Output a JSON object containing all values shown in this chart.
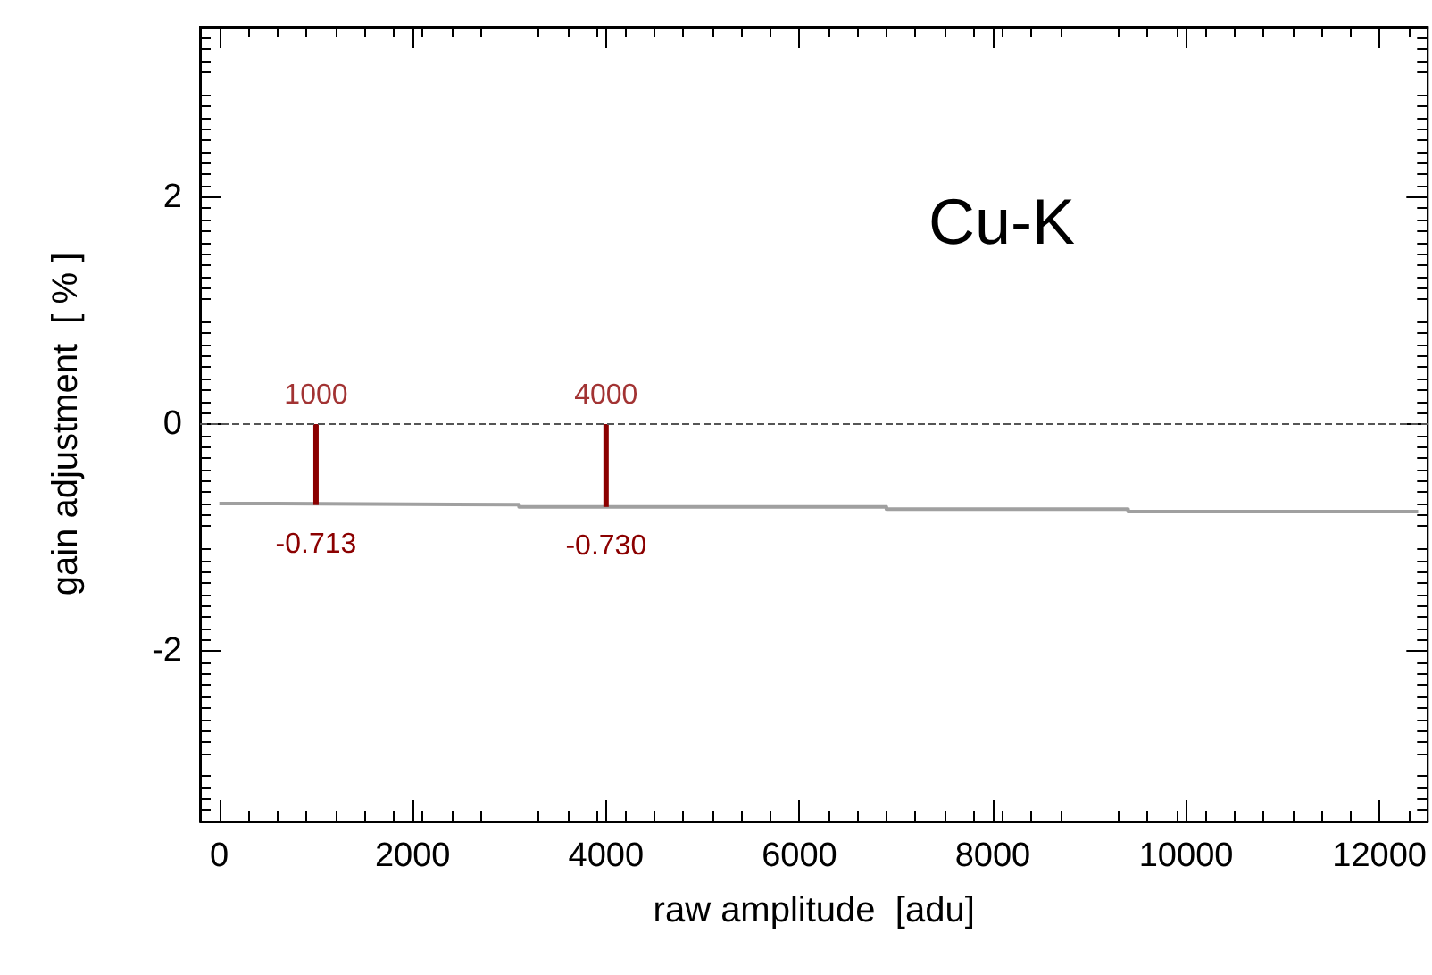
{
  "chart_data": {
    "type": "line",
    "xlabel": "raw amplitude  [adu]",
    "ylabel": "gain adjustment  [ % ]",
    "annotations": [
      "Cu-K",
      {
        "text": "1000",
        "x": 1000,
        "y": 0
      },
      {
        "text": "4000",
        "x": 4000,
        "y": 0
      }
    ],
    "xlim": [
      -200,
      12500
    ],
    "xticks": [
      0,
      2000,
      4000,
      6000,
      8000,
      10000,
      12000
    ],
    "ylim": [
      -3.5,
      3.5
    ],
    "yticks": [
      -2,
      0,
      2
    ],
    "marker": "none",
    "ref_lines": [
      {
        "axis": "y",
        "value": 0,
        "color": "#555555",
        "line_style": "dashed"
      }
    ],
    "series": [
      {
        "color": "#a0a0a0",
        "x": [
          0,
          600,
          600,
          3100,
          3100,
          6900,
          6900,
          9400,
          9400,
          12400
        ],
        "values": [
          -0.7,
          -0.7,
          -0.71,
          -0.71,
          -0.73,
          -0.73,
          -0.75,
          -0.75,
          -0.77,
          -0.77
        ]
      },
      {
        "type": "bar",
        "color": "#8b0000",
        "x": [
          1000,
          4000
        ],
        "values": [
          -0.713,
          -0.73
        ],
        "value_labels": [
          "-0.713",
          "-0.730"
        ]
      }
    ]
  }
}
